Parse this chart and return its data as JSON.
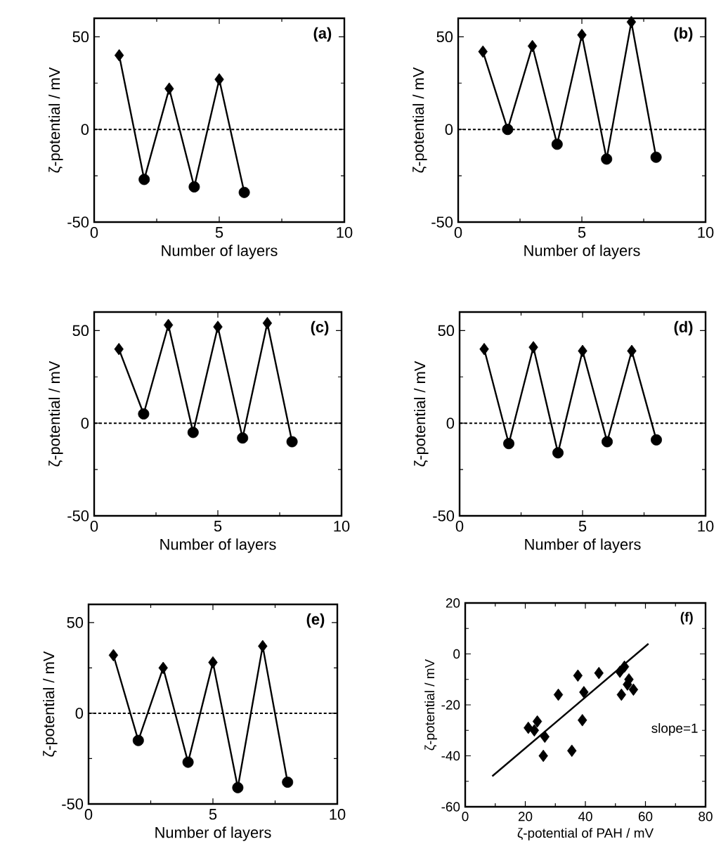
{
  "chart_data": [
    {
      "type": "line",
      "xlabel": "Number of layers",
      "ylabel": "ζ-potential / mV",
      "annotations": [
        "(a)"
      ],
      "xlim": [
        0,
        10
      ],
      "ylim": [
        -50,
        60
      ],
      "xticks": [
        0,
        5,
        10
      ],
      "yticks": [
        -50,
        0,
        50
      ],
      "ref_lines": [
        {
          "axis": "y",
          "value": 0,
          "line_style": "dashed"
        }
      ],
      "series": [
        {
          "type": "line",
          "color": "#000000",
          "marker": "none",
          "x": [
            1,
            2,
            3,
            4,
            5,
            6
          ],
          "values": [
            40,
            -27,
            22,
            -31,
            27,
            -34
          ]
        },
        {
          "type": "scatter",
          "color": "#000000",
          "marker": "diamond",
          "x": [
            1,
            3,
            5
          ],
          "values": [
            40,
            22,
            27
          ]
        },
        {
          "type": "scatter",
          "color": "#000000",
          "marker": "circle",
          "x": [
            2,
            4,
            6
          ],
          "values": [
            -27,
            -31,
            -34
          ]
        }
      ]
    },
    {
      "type": "line",
      "xlabel": "Number of layers",
      "ylabel": "ζ-potential / mV",
      "annotations": [
        "(b)"
      ],
      "xlim": [
        0,
        10
      ],
      "ylim": [
        -50,
        60
      ],
      "xticks": [
        0,
        5,
        10
      ],
      "yticks": [
        -50,
        0,
        50
      ],
      "ref_lines": [
        {
          "axis": "y",
          "value": 0,
          "line_style": "dashed"
        }
      ],
      "series": [
        {
          "type": "line",
          "color": "#000000",
          "marker": "none",
          "x": [
            1,
            2,
            3,
            4,
            5,
            6,
            7,
            8
          ],
          "values": [
            42,
            0,
            45,
            -8,
            51,
            -16,
            58,
            -15
          ]
        },
        {
          "type": "scatter",
          "color": "#000000",
          "marker": "diamond",
          "x": [
            1,
            3,
            5,
            7
          ],
          "values": [
            42,
            45,
            51,
            58
          ]
        },
        {
          "type": "scatter",
          "color": "#000000",
          "marker": "circle",
          "x": [
            2,
            4,
            6,
            8
          ],
          "values": [
            0,
            -8,
            -16,
            -15
          ]
        }
      ]
    },
    {
      "type": "line",
      "xlabel": "Number of layers",
      "ylabel": "ζ-potential / mV",
      "annotations": [
        "(c)"
      ],
      "xlim": [
        0,
        10
      ],
      "ylim": [
        -50,
        60
      ],
      "xticks": [
        0,
        5,
        10
      ],
      "yticks": [
        -50,
        0,
        50
      ],
      "ref_lines": [
        {
          "axis": "y",
          "value": 0,
          "line_style": "dashed"
        }
      ],
      "series": [
        {
          "type": "line",
          "color": "#000000",
          "marker": "none",
          "x": [
            1,
            2,
            3,
            4,
            5,
            6,
            7,
            8
          ],
          "values": [
            40,
            5,
            53,
            -5,
            52,
            -8,
            54,
            -10
          ]
        },
        {
          "type": "scatter",
          "color": "#000000",
          "marker": "diamond",
          "x": [
            1,
            3,
            5,
            7
          ],
          "values": [
            40,
            53,
            52,
            54
          ]
        },
        {
          "type": "scatter",
          "color": "#000000",
          "marker": "circle",
          "x": [
            2,
            4,
            6,
            8
          ],
          "values": [
            5,
            -5,
            -8,
            -10
          ]
        }
      ]
    },
    {
      "type": "line",
      "xlabel": "Number of layers",
      "ylabel": "ζ-potential / mV",
      "annotations": [
        "(d)"
      ],
      "xlim": [
        0,
        10
      ],
      "ylim": [
        -50,
        60
      ],
      "xticks": [
        0,
        5,
        10
      ],
      "yticks": [
        -50,
        0,
        50
      ],
      "ref_lines": [
        {
          "axis": "y",
          "value": 0,
          "line_style": "dashed"
        }
      ],
      "series": [
        {
          "type": "line",
          "color": "#000000",
          "marker": "none",
          "x": [
            1,
            2,
            3,
            4,
            5,
            6,
            7,
            8
          ],
          "values": [
            40,
            -11,
            41,
            -16,
            39,
            -10,
            39,
            -9
          ]
        },
        {
          "type": "scatter",
          "color": "#000000",
          "marker": "diamond",
          "x": [
            1,
            3,
            5,
            7
          ],
          "values": [
            40,
            41,
            39,
            39
          ]
        },
        {
          "type": "scatter",
          "color": "#000000",
          "marker": "circle",
          "x": [
            2,
            4,
            6,
            8
          ],
          "values": [
            -11,
            -16,
            -10,
            -9
          ]
        }
      ]
    },
    {
      "type": "line",
      "xlabel": "Number of layers",
      "ylabel": "ζ-potential / mV",
      "annotations": [
        "(e)"
      ],
      "xlim": [
        0,
        10
      ],
      "ylim": [
        -50,
        60
      ],
      "xticks": [
        0,
        5,
        10
      ],
      "yticks": [
        -50,
        0,
        50
      ],
      "ref_lines": [
        {
          "axis": "y",
          "value": 0,
          "line_style": "dashed"
        }
      ],
      "series": [
        {
          "type": "line",
          "color": "#000000",
          "marker": "none",
          "x": [
            1,
            2,
            3,
            4,
            5,
            6,
            7,
            8
          ],
          "values": [
            32,
            -15,
            25,
            -27,
            28,
            -41,
            37,
            -38
          ]
        },
        {
          "type": "scatter",
          "color": "#000000",
          "marker": "diamond",
          "x": [
            1,
            3,
            5,
            7
          ],
          "values": [
            32,
            25,
            28,
            37
          ]
        },
        {
          "type": "scatter",
          "color": "#000000",
          "marker": "circle",
          "x": [
            2,
            4,
            6,
            8
          ],
          "values": [
            -15,
            -27,
            -41,
            -38
          ]
        }
      ]
    },
    {
      "type": "scatter",
      "xlabel": "ζ-potential of PAH / mV",
      "ylabel": "ζ-potential / mV",
      "annotations": [
        "(f)",
        "slope=1"
      ],
      "xlim": [
        0,
        80
      ],
      "ylim": [
        -60,
        20
      ],
      "xticks": [
        0,
        20,
        40,
        60,
        80
      ],
      "yticks": [
        -60,
        -40,
        -20,
        0,
        20
      ],
      "series": [
        {
          "color": "#000000",
          "marker": "diamond",
          "x": [
            21,
            24,
            23,
            26.5,
            26,
            31,
            35.5,
            37.5,
            39,
            39.5,
            44.5,
            51.5,
            53,
            52,
            54.5,
            56,
            54
          ],
          "values": [
            -29,
            -26.5,
            -30,
            -32.5,
            -40,
            -16,
            -38,
            -8.5,
            -26,
            -15,
            -7.5,
            -7,
            -5,
            -16,
            -10,
            -14,
            -12
          ]
        },
        {
          "type": "line",
          "color": "#000000",
          "marker": "none",
          "x": [
            9,
            61
          ],
          "values": [
            -48,
            4
          ]
        }
      ]
    }
  ]
}
